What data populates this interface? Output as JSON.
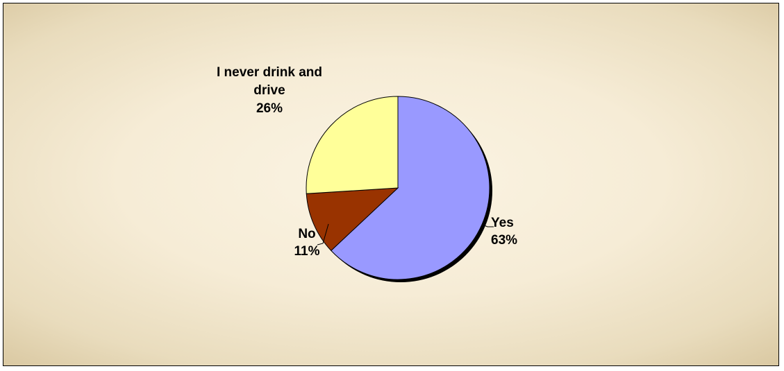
{
  "chart_data": {
    "type": "pie",
    "title": "",
    "start_angle_deg": 0,
    "direction": "clockwise",
    "slices": [
      {
        "name": "Yes",
        "label_lines": [
          "Yes",
          "63%"
        ],
        "value": 63,
        "color": "#9999ff"
      },
      {
        "name": "No",
        "label_lines": [
          "No",
          "11%"
        ],
        "value": 11,
        "color": "#993300"
      },
      {
        "name": "I never drink and drive",
        "label_lines": [
          "I never drink and",
          "drive",
          "26%"
        ],
        "value": 26,
        "color": "#ffff99"
      }
    ],
    "slice_outline_color": "#000000",
    "shadow_color": "#000000",
    "legend": "none"
  }
}
